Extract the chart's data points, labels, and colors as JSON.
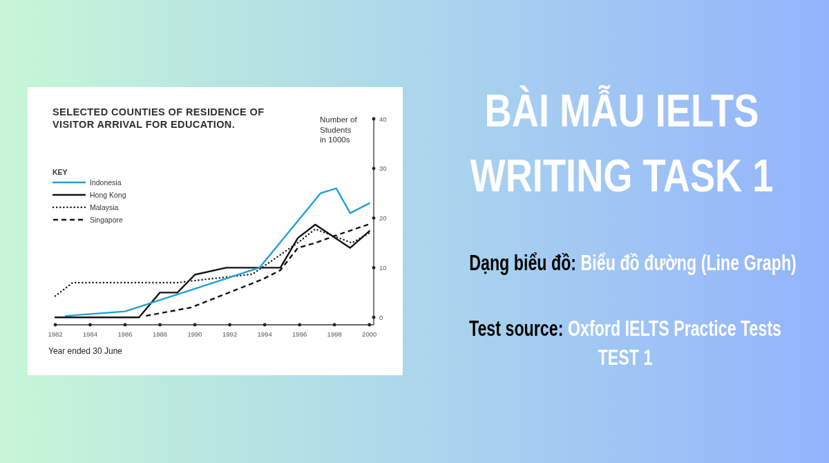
{
  "chart_data": {
    "type": "line",
    "title": "SELECTED COUNTIES OF RESIDENCE OF VISITOR ARRIVAL FOR EDUCATION.",
    "xlabel": "Year ended 30 June",
    "ylabel": "Number of Students in 1000s",
    "legend_title": "KEY",
    "legend": "top left",
    "xlim": [
      1982,
      2000.25
    ],
    "xticks": [
      1982,
      1984,
      1986,
      1988,
      1990,
      1992,
      1994,
      1996,
      1998,
      2000
    ],
    "ylim": [
      -1.5,
      40
    ],
    "yticks": [
      0,
      10,
      20,
      30,
      40
    ],
    "series": [
      {
        "name": "Indonesia",
        "color": "#1e9fd8",
        "line_style": "solid",
        "x": [
          1982.6,
          1986,
          1993.7,
          1997.2,
          1998.1,
          1998.9,
          2000
        ],
        "values": [
          0.3,
          1.2,
          10,
          25,
          26,
          21,
          23
        ]
      },
      {
        "name": "Hong Kong",
        "color": "#111111",
        "line_style": "solid",
        "x": [
          1982,
          1986.8,
          1988,
          1989,
          1990,
          1991.8,
          1994.9,
          1995.9,
          1996.9,
          1998.9,
          2000
        ],
        "values": [
          0,
          0,
          5,
          5,
          8.6,
          10,
          10,
          16,
          18.7,
          14,
          17.4
        ]
      },
      {
        "name": "Malaysia",
        "color": "#111111",
        "line_style": "dotted",
        "x": [
          1982,
          1983,
          1989,
          1993.3,
          1996,
          1996.9,
          1999,
          2000
        ],
        "values": [
          4.3,
          7,
          7,
          8.7,
          15.3,
          17.8,
          15,
          17
        ]
      },
      {
        "name": "Singapore",
        "color": "#111111",
        "line_style": "dashed",
        "x": [
          1987.2,
          1989.8,
          1993.9,
          1994.9,
          1995.9,
          1996.9,
          1998,
          2000
        ],
        "values": [
          0.3,
          2,
          7.7,
          9.5,
          14,
          15,
          16.4,
          18.8
        ]
      }
    ],
    "annotations": [
      "BÀI MẪU IELTS WRITING TASK 1",
      "Dạng biểu đồ:",
      "Biểu đồ đường (Line Graph)",
      "Test source:",
      "Oxford IELTS Practice Tests TEST 1"
    ]
  }
}
